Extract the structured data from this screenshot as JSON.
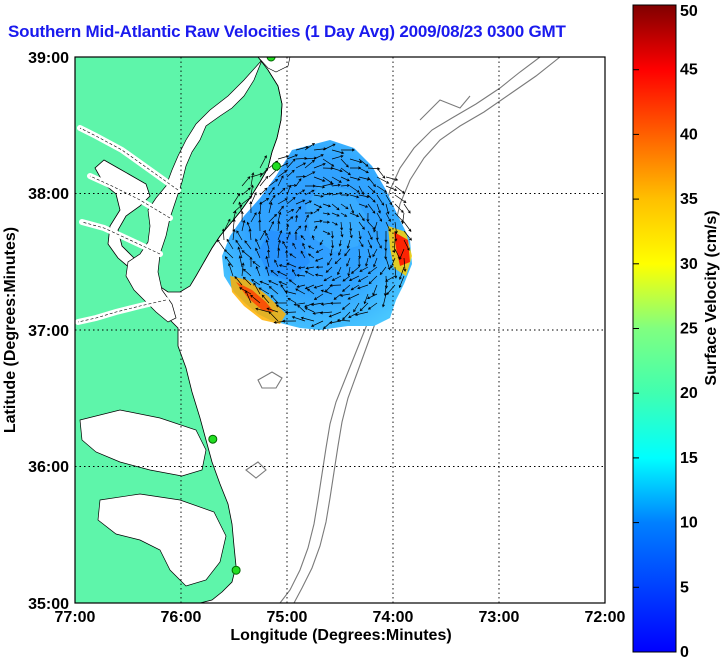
{
  "map": {
    "title": "Southern Mid-Atlantic Raw Velocities (1 Day Avg) 2009/08/23 0300 GMT",
    "xlabel": "Longitude (Degrees:Minutes)",
    "ylabel": "Latitude (Degrees:Minutes)",
    "x_ticks": [
      "77:00",
      "76:00",
      "75:00",
      "74:00",
      "73:00",
      "72:00"
    ],
    "y_ticks": [
      "39:00",
      "38:00",
      "37:00",
      "36:00",
      "35:00"
    ],
    "lon_range": [
      -77,
      -72
    ],
    "lat_range": [
      35,
      39
    ],
    "land_color": "#5ef5aa",
    "grid": "dotted"
  },
  "stations": [
    {
      "lon": -75.15,
      "lat": 39.0
    },
    {
      "lon": -75.1,
      "lat": 38.2
    },
    {
      "lon": -75.7,
      "lat": 36.2
    },
    {
      "lon": -75.48,
      "lat": 35.24
    }
  ],
  "colorbar": {
    "label": "Surface Velocity (cm/s)",
    "min": 0,
    "max": 50,
    "ticks": [
      "0",
      "5",
      "10",
      "15",
      "20",
      "25",
      "30",
      "35",
      "40",
      "45",
      "50"
    ],
    "colormap": "jet"
  }
}
